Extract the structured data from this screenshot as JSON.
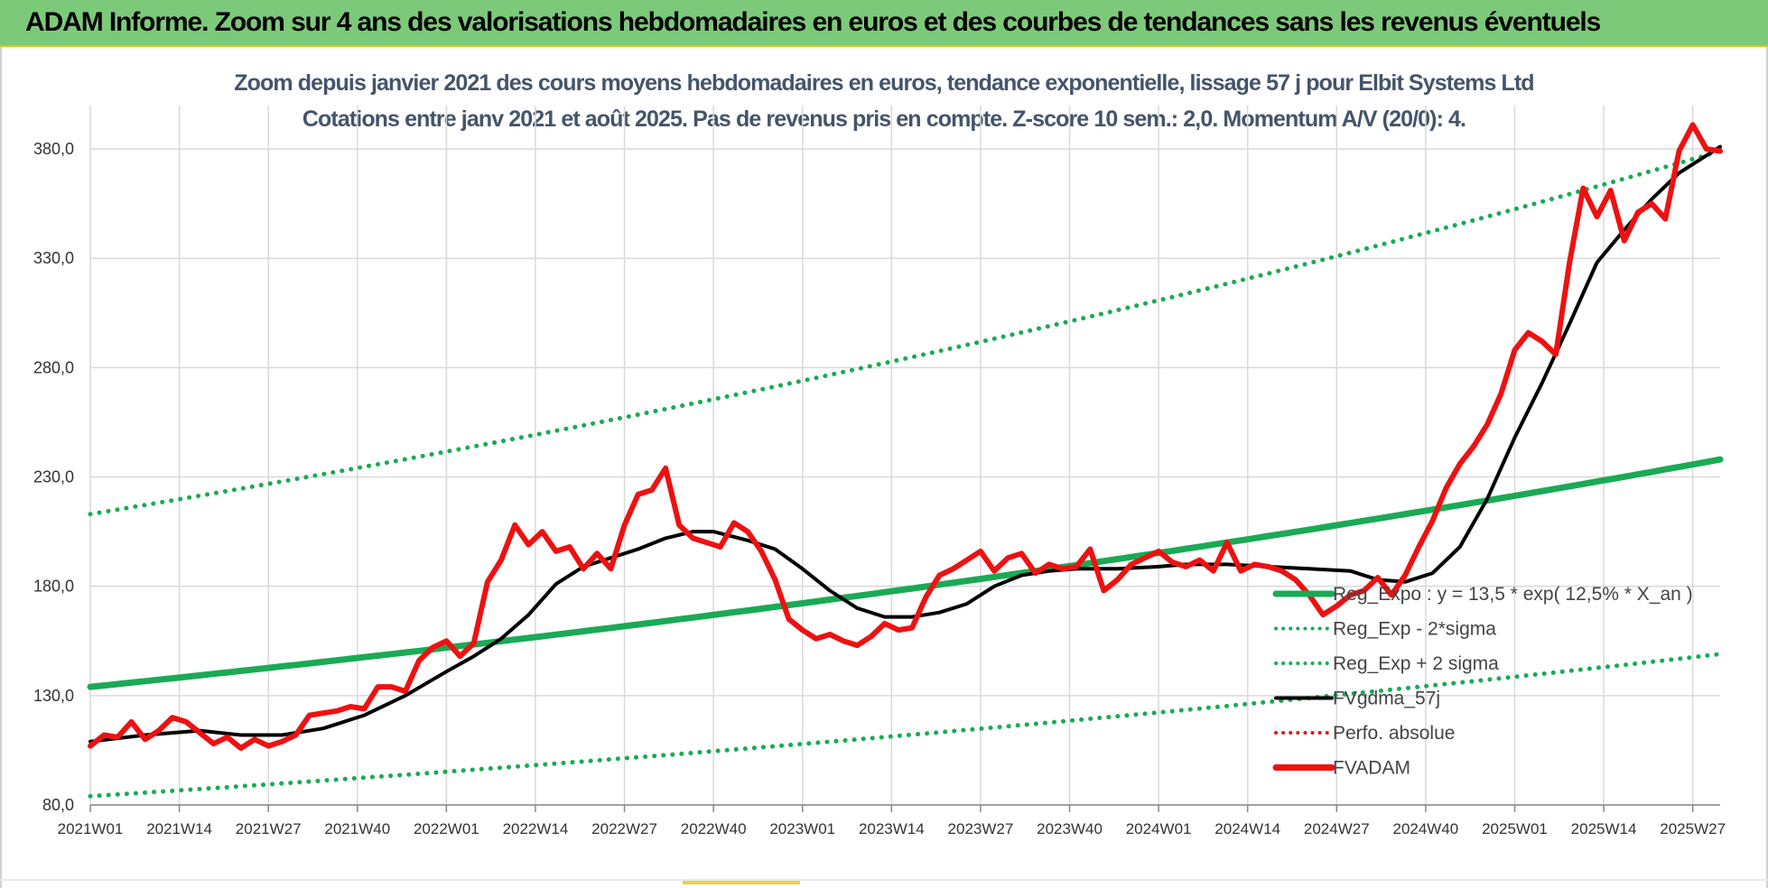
{
  "banner_title": "ADAM Informe. Zoom sur 4 ans des valorisations hebdomadaires en euros et des courbes de tendances sans les revenus éventuels",
  "colors": {
    "banner": "#7dc97a",
    "regression": "#1aaa55",
    "fvgdma": "#000000",
    "fvadam": "#ee1111",
    "perfo": "#cc2222",
    "subtitle": "#44546a"
  },
  "chart_data": {
    "type": "line",
    "title": "Zoom depuis janvier 2021 des cours moyens hebdomadaires en euros, tendance exponentielle, lissage 57 j pour Elbit Systems Ltd",
    "subtitle": "Cotations entre janv 2021 et août 2025.  Pas de revenus pris en compte. Z-score 10 sem.: 2,0. Momentum A/V (20/0): 4.",
    "xlabel": "",
    "ylabel": "",
    "ylim": [
      80,
      390
    ],
    "yticks": [
      "80,0",
      "130,0",
      "180,0",
      "230,0",
      "280,0",
      "330,0",
      "380,0"
    ],
    "x_tick_labels": [
      "2021W01",
      "2021W14",
      "2021W27",
      "2021W40",
      "2022W01",
      "2022W14",
      "2022W27",
      "2022W40",
      "2023W01",
      "2023W14",
      "2023W27",
      "2023W40",
      "2024W01",
      "2024W14",
      "2024W27",
      "2024W40",
      "2025W01",
      "2025W14",
      "2025W27"
    ],
    "grid": true,
    "legend_position": "bottom-right",
    "legend": [
      {
        "label": "Reg_Expo : y = 13,5 * exp( 12,5% *  X_an )",
        "style": "solid-thick",
        "color": "#1aaa55"
      },
      {
        "label": "Reg_Exp - 2*sigma",
        "style": "dotted",
        "color": "#1aaa55"
      },
      {
        "label": "Reg_Exp + 2 sigma",
        "style": "dotted",
        "color": "#1aaa55"
      },
      {
        "label": "FVgdma_57j",
        "style": "solid",
        "color": "#000000"
      },
      {
        "label": "Perfo. absolue",
        "style": "dotted",
        "color": "#cc2222"
      },
      {
        "label": "FVADAM",
        "style": "solid-thick",
        "color": "#ee1111"
      }
    ],
    "series": [
      {
        "name": "Reg_Expo : y = 13,5 * exp( 12,5% *  X_an )",
        "x": [
          0,
          238
        ],
        "values": [
          134,
          238
        ],
        "interpolation": "exponential"
      },
      {
        "name": "Reg_Exp - 2*sigma",
        "x": [
          0,
          238
        ],
        "values": [
          84,
          149
        ],
        "interpolation": "exponential"
      },
      {
        "name": "Reg_Exp + 2 sigma",
        "x": [
          0,
          238
        ],
        "values": [
          213,
          379
        ],
        "interpolation": "exponential"
      },
      {
        "name": "FVgdma_57j",
        "x": [
          0,
          8,
          16,
          22,
          28,
          34,
          40,
          46,
          52,
          56,
          60,
          64,
          68,
          72,
          76,
          80,
          84,
          88,
          91,
          96,
          100,
          104,
          108,
          112,
          116,
          120,
          124,
          128,
          132,
          136,
          140,
          144,
          150,
          156,
          160,
          166,
          172,
          178,
          184,
          188,
          192,
          196,
          200,
          204,
          208,
          212,
          216,
          220,
          224,
          228,
          232,
          236,
          238
        ],
        "values": [
          109,
          112,
          114,
          112,
          112,
          115,
          121,
          130,
          141,
          148,
          156,
          167,
          181,
          189,
          193,
          197,
          202,
          205,
          205,
          201,
          197,
          188,
          178,
          170,
          166,
          166,
          168,
          172,
          180,
          185,
          187,
          188,
          188,
          189,
          190,
          190,
          189,
          188,
          187,
          183,
          182,
          186,
          198,
          220,
          248,
          273,
          300,
          328,
          343,
          357,
          369,
          377,
          381
        ]
      },
      {
        "name": "FVADAM",
        "x": [
          0,
          2,
          4,
          6,
          8,
          10,
          12,
          14,
          16,
          18,
          20,
          22,
          24,
          26,
          28,
          30,
          32,
          34,
          36,
          38,
          40,
          42,
          44,
          46,
          48,
          50,
          52,
          54,
          56,
          58,
          60,
          62,
          64,
          66,
          68,
          70,
          72,
          74,
          76,
          78,
          80,
          82,
          84,
          86,
          88,
          90,
          92,
          94,
          96,
          98,
          100,
          102,
          104,
          106,
          108,
          110,
          112,
          114,
          116,
          118,
          120,
          122,
          124,
          126,
          128,
          130,
          132,
          134,
          136,
          138,
          140,
          142,
          144,
          146,
          148,
          150,
          152,
          154,
          156,
          158,
          160,
          162,
          164,
          166,
          168,
          170,
          172,
          174,
          176,
          178,
          180,
          182,
          184,
          186,
          188,
          190,
          192,
          194,
          196,
          198,
          200,
          202,
          204,
          206,
          208,
          210,
          212,
          214,
          216,
          218,
          220,
          222,
          224,
          226,
          228,
          230,
          232,
          234,
          236,
          238
        ],
        "values": [
          107,
          112,
          111,
          118,
          110,
          114,
          120,
          118,
          113,
          108,
          111,
          106,
          110,
          107,
          109,
          112,
          121,
          122,
          123,
          125,
          124,
          134,
          134,
          132,
          146,
          152,
          155,
          148,
          154,
          182,
          192,
          208,
          199,
          205,
          196,
          198,
          188,
          195,
          188,
          208,
          222,
          224,
          234,
          208,
          202,
          200,
          198,
          209,
          205,
          196,
          183,
          165,
          160,
          156,
          158,
          155,
          153,
          157,
          163,
          160,
          161,
          175,
          185,
          188,
          192,
          196,
          187,
          193,
          195,
          186,
          190,
          188,
          189,
          197,
          178,
          183,
          190,
          193,
          196,
          191,
          189,
          192,
          187,
          200,
          187,
          190,
          189,
          187,
          183,
          176,
          167,
          171,
          176,
          178,
          184,
          176,
          185,
          198,
          210,
          225,
          236,
          244,
          254,
          268,
          288,
          296,
          292,
          286,
          328,
          362,
          349,
          361,
          338,
          351,
          355,
          348,
          379,
          391,
          380,
          379
        ]
      }
    ]
  }
}
